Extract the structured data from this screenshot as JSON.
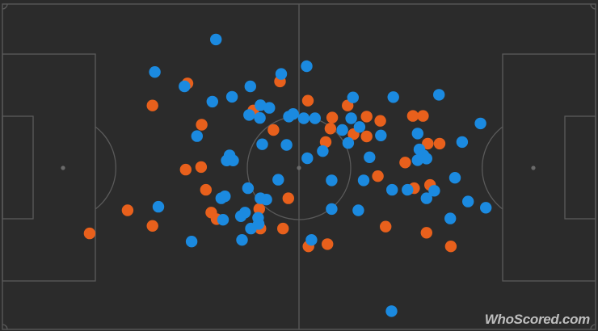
{
  "brand": {
    "watermark": "WhoScored.com"
  },
  "chart_data": {
    "type": "scatter",
    "title": "",
    "xlabel": "",
    "ylabel": "",
    "xlim": [
      0,
      100
    ],
    "ylim": [
      0,
      100
    ],
    "grid": false,
    "legend": "none",
    "colors": {
      "pitch": "#2b2b2b",
      "lines": "#5a5a5a",
      "orange": "#e8601c",
      "blue": "#1b8ae0"
    },
    "series": [
      {
        "color": "#e8601c",
        "points": [
          [
            14.7,
            29.5
          ],
          [
            21.1,
            36.6
          ],
          [
            25.3,
            31.8
          ],
          [
            25.3,
            68.8
          ],
          [
            31.2,
            75.6
          ],
          [
            33.6,
            62.9
          ],
          [
            30.9,
            49.1
          ],
          [
            33.5,
            49.9
          ],
          [
            34.3,
            42.9
          ],
          [
            35.2,
            35.9
          ],
          [
            36.1,
            33.9
          ],
          [
            42.3,
            67.3
          ],
          [
            46.8,
            76.2
          ],
          [
            45.7,
            61.3
          ],
          [
            43.3,
            37.0
          ],
          [
            43.5,
            31.0
          ],
          [
            48.2,
            40.3
          ],
          [
            47.3,
            31.0
          ],
          [
            51.5,
            70.3
          ],
          [
            51.6,
            25.5
          ],
          [
            55.6,
            65.1
          ],
          [
            55.3,
            61.7
          ],
          [
            54.5,
            57.6
          ],
          [
            58.2,
            68.8
          ],
          [
            59.2,
            60.0
          ],
          [
            61.4,
            65.4
          ],
          [
            63.7,
            64.1
          ],
          [
            61.4,
            59.3
          ],
          [
            63.3,
            47.1
          ],
          [
            54.8,
            26.2
          ],
          [
            64.6,
            31.6
          ],
          [
            69.2,
            65.6
          ],
          [
            70.9,
            65.6
          ],
          [
            71.7,
            57.1
          ],
          [
            73.7,
            57.1
          ],
          [
            67.9,
            51.3
          ],
          [
            69.4,
            43.4
          ],
          [
            72.1,
            44.4
          ],
          [
            71.5,
            29.7
          ],
          [
            75.6,
            25.5
          ]
        ]
      },
      {
        "color": "#1b8ae0",
        "points": [
          [
            36.0,
            89.1
          ],
          [
            25.7,
            79.1
          ],
          [
            30.7,
            74.7
          ],
          [
            35.4,
            70.0
          ],
          [
            38.7,
            71.5
          ],
          [
            47.0,
            78.5
          ],
          [
            51.3,
            80.9
          ],
          [
            41.8,
            74.7
          ],
          [
            43.5,
            68.9
          ],
          [
            45.0,
            68.1
          ],
          [
            41.6,
            65.9
          ],
          [
            43.4,
            65.0
          ],
          [
            48.3,
            65.4
          ],
          [
            49.0,
            66.2
          ],
          [
            50.8,
            64.9
          ],
          [
            52.7,
            64.9
          ],
          [
            59.1,
            71.3
          ],
          [
            65.9,
            71.4
          ],
          [
            57.3,
            61.3
          ],
          [
            58.8,
            64.9
          ],
          [
            60.2,
            62.2
          ],
          [
            63.8,
            59.6
          ],
          [
            58.3,
            57.3
          ],
          [
            32.8,
            59.4
          ],
          [
            43.8,
            56.9
          ],
          [
            47.9,
            56.7
          ],
          [
            38.3,
            53.5
          ],
          [
            37.8,
            51.9
          ],
          [
            38.9,
            51.9
          ],
          [
            51.4,
            52.6
          ],
          [
            54.0,
            54.8
          ],
          [
            61.9,
            52.9
          ],
          [
            26.3,
            37.7
          ],
          [
            41.4,
            43.4
          ],
          [
            46.5,
            46.0
          ],
          [
            36.9,
            40.3
          ],
          [
            37.5,
            40.9
          ],
          [
            43.5,
            40.3
          ],
          [
            44.5,
            39.9
          ],
          [
            40.9,
            35.9
          ],
          [
            43.1,
            34.3
          ],
          [
            40.2,
            34.8
          ],
          [
            43.2,
            32.4
          ],
          [
            41.9,
            31.0
          ],
          [
            37.2,
            33.7
          ],
          [
            55.5,
            45.8
          ],
          [
            55.5,
            37.0
          ],
          [
            60.9,
            45.8
          ],
          [
            60.0,
            36.6
          ],
          [
            65.7,
            42.9
          ],
          [
            68.3,
            42.9
          ],
          [
            73.6,
            72.1
          ],
          [
            70.0,
            60.2
          ],
          [
            70.3,
            55.3
          ],
          [
            71.0,
            53.5
          ],
          [
            71.5,
            52.5
          ],
          [
            70.0,
            52.0
          ],
          [
            72.8,
            42.6
          ],
          [
            71.5,
            40.3
          ],
          [
            76.3,
            46.6
          ],
          [
            77.5,
            57.6
          ],
          [
            80.6,
            63.3
          ],
          [
            78.5,
            39.3
          ],
          [
            81.5,
            37.4
          ],
          [
            75.5,
            34.1
          ],
          [
            52.1,
            27.5
          ],
          [
            40.4,
            27.5
          ],
          [
            31.9,
            27.0
          ],
          [
            65.6,
            5.6
          ]
        ]
      }
    ]
  }
}
